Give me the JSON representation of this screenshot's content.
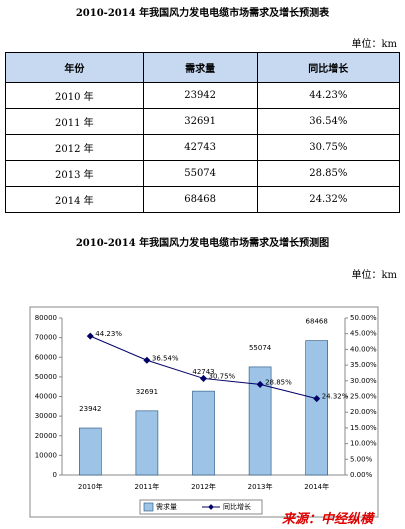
{
  "title1": "2010-2014 年我国风力发电电缆市场需求及增长预测表",
  "unit1": "单位：km",
  "table": {
    "header": [
      "年份",
      "需求量",
      "同比增长"
    ],
    "rows": [
      [
        "2010 年",
        "23942",
        "44.23%"
      ],
      [
        "2011 年",
        "32691",
        "36.54%"
      ],
      [
        "2012 年",
        "42743",
        "30.75%"
      ],
      [
        "2013 年",
        "55074",
        "28.85%"
      ],
      [
        "2014 年",
        "68468",
        "24.32%"
      ]
    ]
  },
  "title2": "2010-2014 年我国风力发电电缆市场需求及增长预测图",
  "unit2": "单位：km",
  "chart_data": {
    "type": "bar",
    "categories": [
      "2010年",
      "2011年",
      "2012年",
      "2013年",
      "2014年"
    ],
    "series": [
      {
        "name": "需求量",
        "color": "#9dc3e6",
        "values": [
          23942,
          32691,
          42743,
          55074,
          68468
        ]
      },
      {
        "name": "同比增长",
        "type": "line",
        "axis": "y2",
        "color": "#000066",
        "values": [
          44.23,
          36.54,
          30.75,
          28.85,
          24.32
        ],
        "value_labels": [
          "44.23%",
          "36.54%",
          "30.75%",
          "28.85%",
          "24.32%"
        ]
      }
    ],
    "ylim": [
      0,
      80000
    ],
    "yticks": [
      0,
      10000,
      20000,
      30000,
      40000,
      50000,
      60000,
      70000,
      80000
    ],
    "y2lim": [
      0,
      50
    ],
    "y2ticks": [
      {
        "value": 0,
        "label": "0.00%"
      },
      {
        "value": 5,
        "label": "5.00%"
      },
      {
        "value": 10,
        "label": "10.00%"
      },
      {
        "value": 15,
        "label": "15.00%"
      },
      {
        "value": 20,
        "label": "20.00%"
      },
      {
        "value": 25,
        "label": "25.00%"
      },
      {
        "value": 30,
        "label": "30.00%"
      },
      {
        "value": 35,
        "label": "35.00%"
      },
      {
        "value": 40,
        "label": "40.00%"
      },
      {
        "value": 45,
        "label": "45.00%"
      },
      {
        "value": 50,
        "label": "50.00%"
      }
    ],
    "legend": "bottom"
  },
  "source": "来源：中经纵横"
}
